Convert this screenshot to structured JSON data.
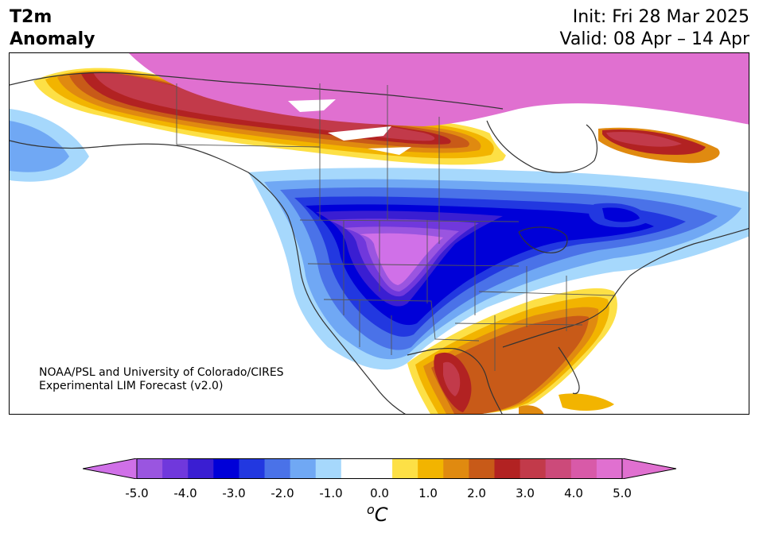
{
  "header": {
    "variable": "T2m",
    "variable2": "Anomaly",
    "init": "Init: Fri 28 Mar 2025",
    "valid": "Valid: 08 Apr – 14 Apr"
  },
  "credit": {
    "line1": "NOAA/PSL and University of Colorado/CIRES",
    "line2": "Experimental LIM Forecast (v2.0)"
  },
  "colorbar": {
    "unit": "oC",
    "unit_base": "C",
    "unit_sup": "o",
    "levels": [
      -5.0,
      -4.5,
      -4.0,
      -3.5,
      -3.0,
      -2.5,
      -2.0,
      -1.5,
      -1.0,
      -0.5,
      0.5,
      1.0,
      1.5,
      2.0,
      2.5,
      3.0,
      3.5,
      4.0,
      4.5,
      5.0
    ],
    "colors": [
      "#9a55e0",
      "#7038dc",
      "#3a1ed2",
      "#0000d8",
      "#2238e0",
      "#4a72e8",
      "#70a8f4",
      "#a6d8fc",
      "#ffffff",
      "#ffffff",
      "#fde046",
      "#f2b400",
      "#e08a10",
      "#c85a18",
      "#b22222",
      "#c23a4a",
      "#cc4a7a",
      "#d85aa8",
      "#e070d0"
    ],
    "under_color": "#d070e8",
    "over_color": "#e070d0",
    "tick_labels": [
      "-5.0",
      "-4.0",
      "-3.0",
      "-2.0",
      "-1.0",
      "0.0",
      "1.0",
      "2.0",
      "3.0",
      "4.0",
      "5.0"
    ]
  },
  "map": {
    "region": "North America",
    "features": {
      "north_canada_anomaly": "+5.0",
      "western_us_anomaly": "-4.5",
      "southeast_us_anomaly": "+2.5",
      "texas_anomaly": "+3.5",
      "quebec_anomaly": "-3.0"
    }
  }
}
